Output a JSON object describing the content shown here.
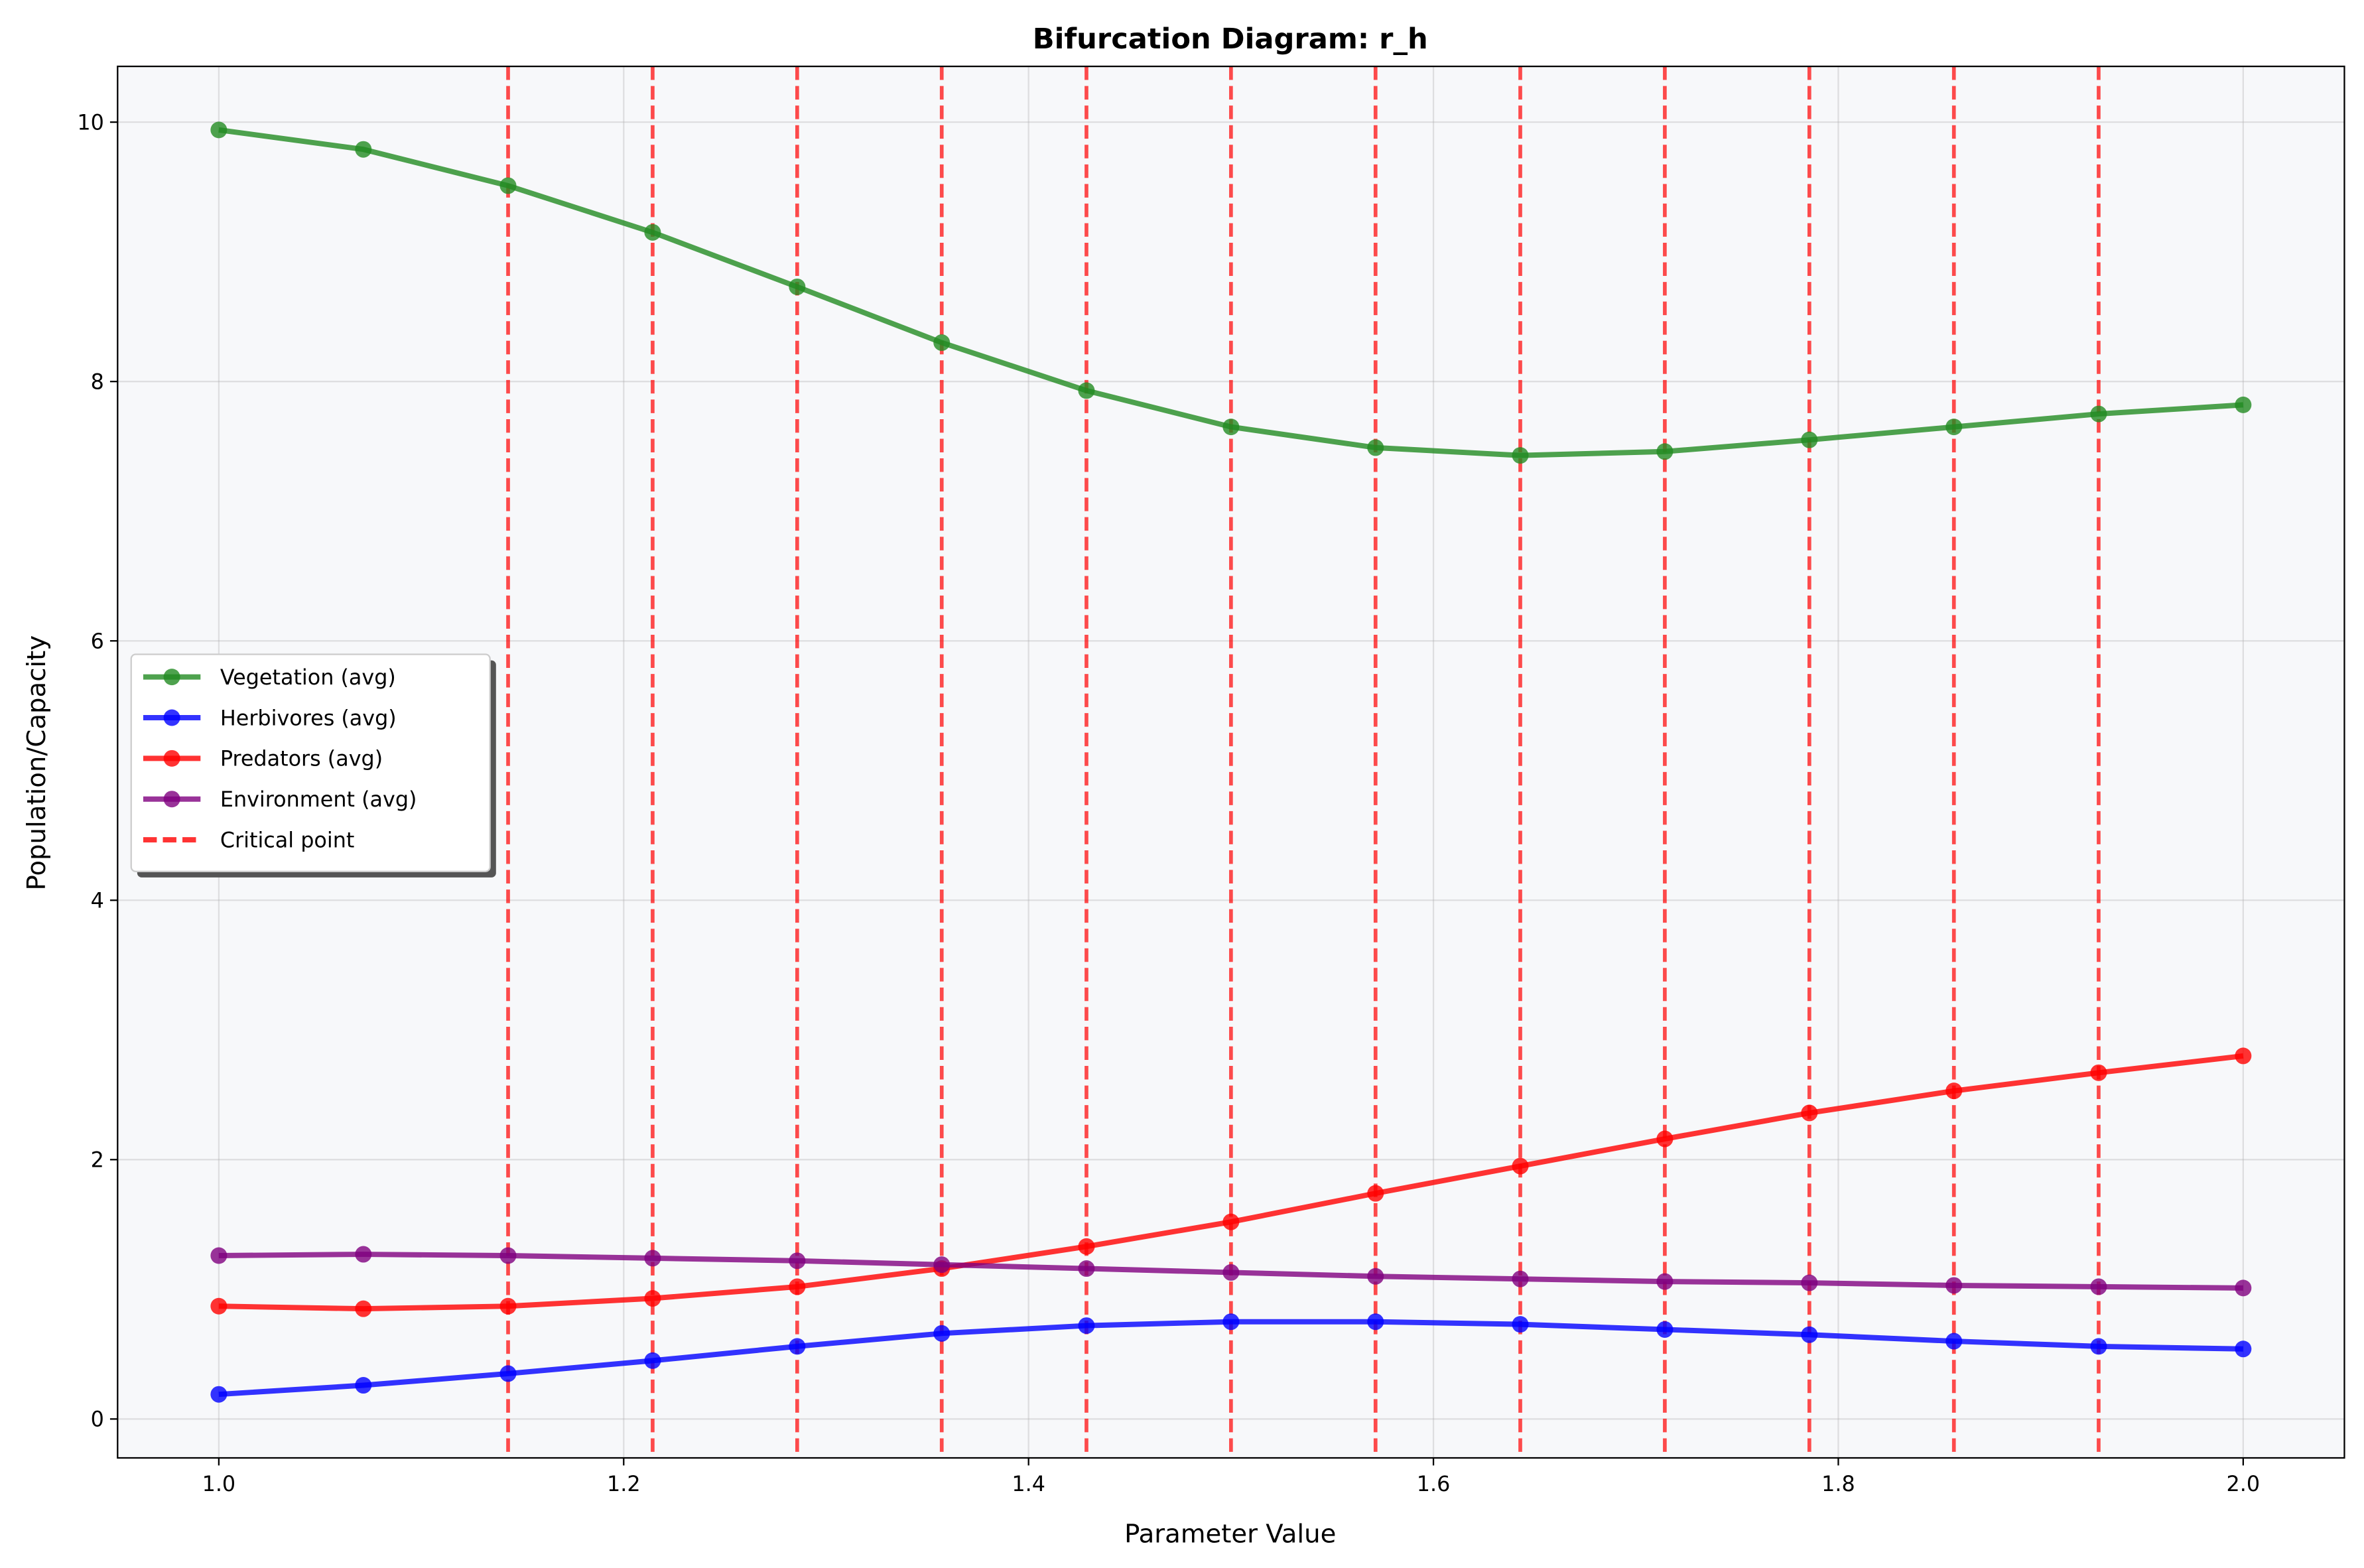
{
  "chart_data": {
    "type": "line",
    "title": "Bifurcation Diagram: r_h",
    "xlabel": "Parameter Value",
    "ylabel": "Population/Capacity",
    "xlim": [
      0.95,
      2.05
    ],
    "ylim": [
      -0.3,
      10.43
    ],
    "xticks": [
      1.0,
      1.2,
      1.4,
      1.6,
      1.8,
      2.0
    ],
    "xtick_labels": [
      "1.0",
      "1.2",
      "1.4",
      "1.6",
      "1.8",
      "2.0"
    ],
    "yticks": [
      0,
      2,
      4,
      6,
      8,
      10
    ],
    "ytick_labels": [
      "0",
      "2",
      "4",
      "6",
      "8",
      "10"
    ],
    "grid": true,
    "legend_position": "center-left",
    "plot_background": "#f7f8fa",
    "x": [
      1.0,
      1.0714,
      1.1429,
      1.2143,
      1.2857,
      1.3571,
      1.4286,
      1.5,
      1.5714,
      1.6429,
      1.7143,
      1.7857,
      1.8571,
      1.9286,
      2.0
    ],
    "series": [
      {
        "name": "Vegetation (avg)",
        "color": "#228b22",
        "values": [
          9.94,
          9.79,
          9.51,
          9.15,
          8.73,
          8.3,
          7.93,
          7.65,
          7.49,
          7.43,
          7.46,
          7.55,
          7.65,
          7.75,
          7.82
        ]
      },
      {
        "name": "Herbivores (avg)",
        "color": "#0000ff",
        "values": [
          0.19,
          0.26,
          0.35,
          0.45,
          0.56,
          0.66,
          0.72,
          0.75,
          0.75,
          0.73,
          0.69,
          0.65,
          0.6,
          0.56,
          0.54
        ]
      },
      {
        "name": "Predators (avg)",
        "color": "#ff0000",
        "values": [
          0.87,
          0.85,
          0.87,
          0.93,
          1.02,
          1.16,
          1.33,
          1.52,
          1.74,
          1.95,
          2.16,
          2.36,
          2.53,
          2.67,
          2.8
        ]
      },
      {
        "name": "Environment (avg)",
        "color": "#800080",
        "values": [
          1.26,
          1.27,
          1.26,
          1.24,
          1.22,
          1.19,
          1.16,
          1.13,
          1.1,
          1.08,
          1.06,
          1.05,
          1.03,
          1.02,
          1.01
        ]
      }
    ],
    "critical_points": {
      "name": "Critical point",
      "color": "#ff0000",
      "x": [
        1.1429,
        1.2143,
        1.2857,
        1.3571,
        1.4286,
        1.5,
        1.5714,
        1.6429,
        1.7143,
        1.7857,
        1.8571,
        1.9286
      ]
    }
  }
}
